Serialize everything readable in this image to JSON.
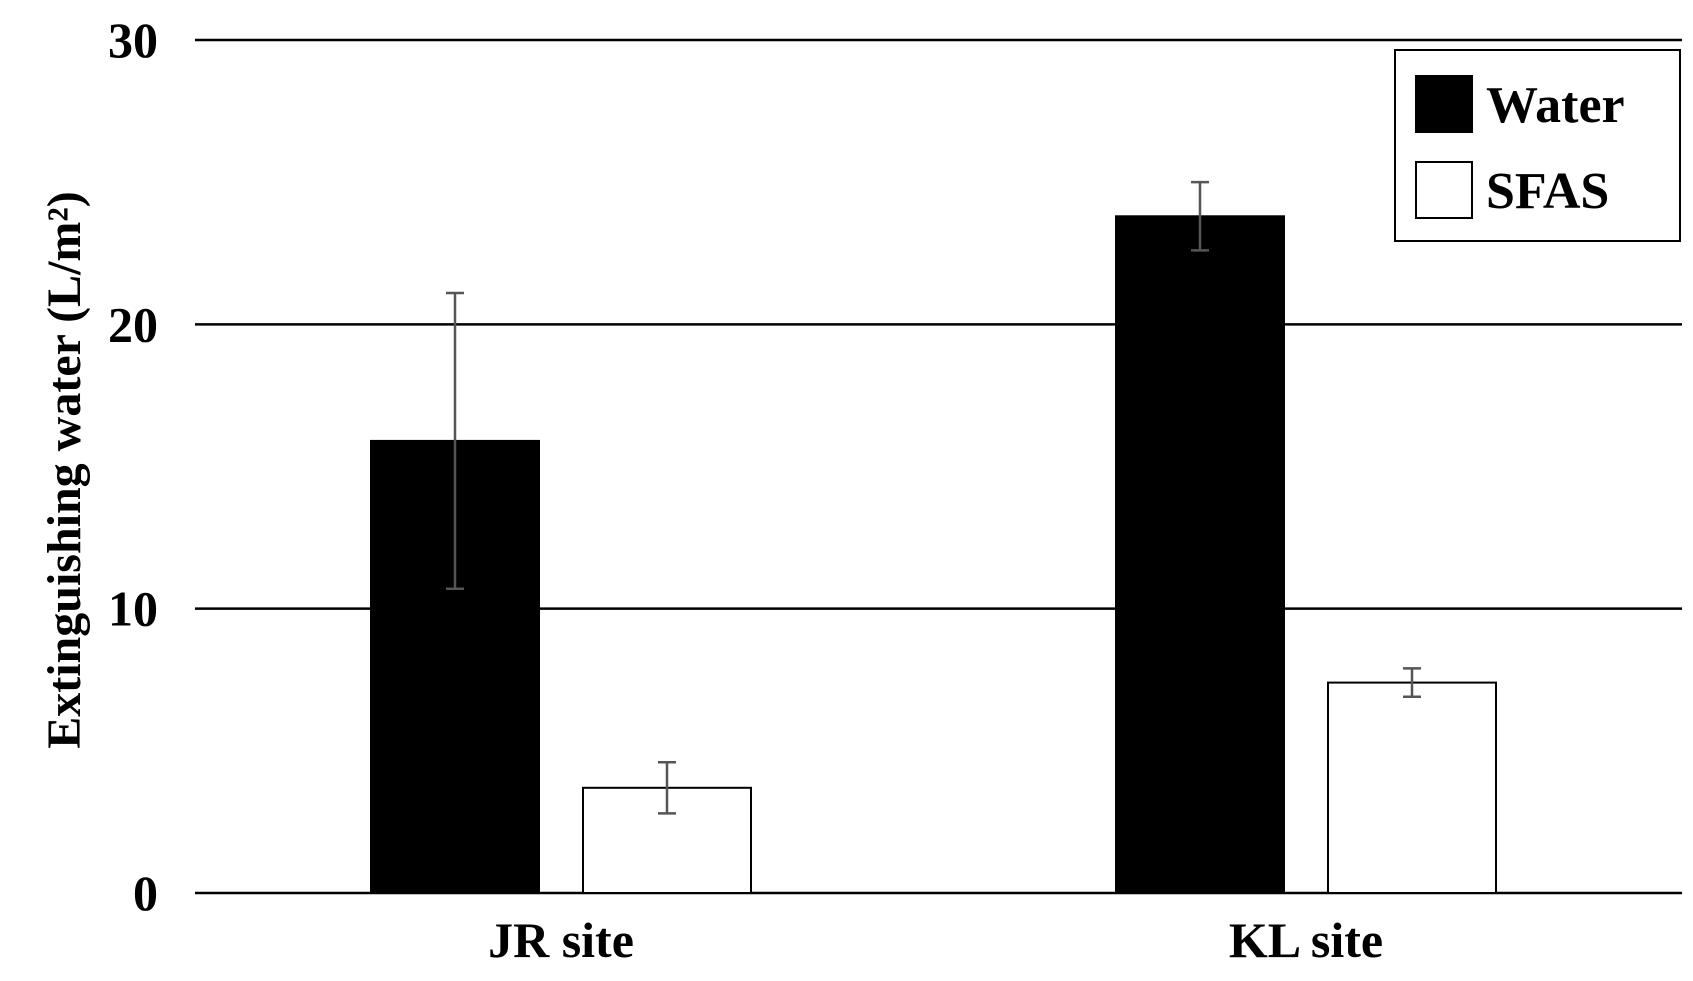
{
  "chart_data": {
    "type": "bar",
    "title": "",
    "xlabel": "",
    "ylabel": "Extinguishing water (L/m²)",
    "categories": [
      "JR site",
      "KL site"
    ],
    "ylim": [
      0,
      30
    ],
    "yticks": [
      0,
      10,
      20,
      30
    ],
    "grid": true,
    "legend_position": "top-right",
    "series": [
      {
        "name": "Water",
        "values": [
          15.9,
          23.8
        ],
        "error": [
          5.2,
          1.2
        ],
        "fill": "#000000"
      },
      {
        "name": "SFAS",
        "values": [
          3.7,
          7.4
        ],
        "error": [
          0.9,
          0.5
        ],
        "fill": "#ffffff"
      }
    ]
  }
}
